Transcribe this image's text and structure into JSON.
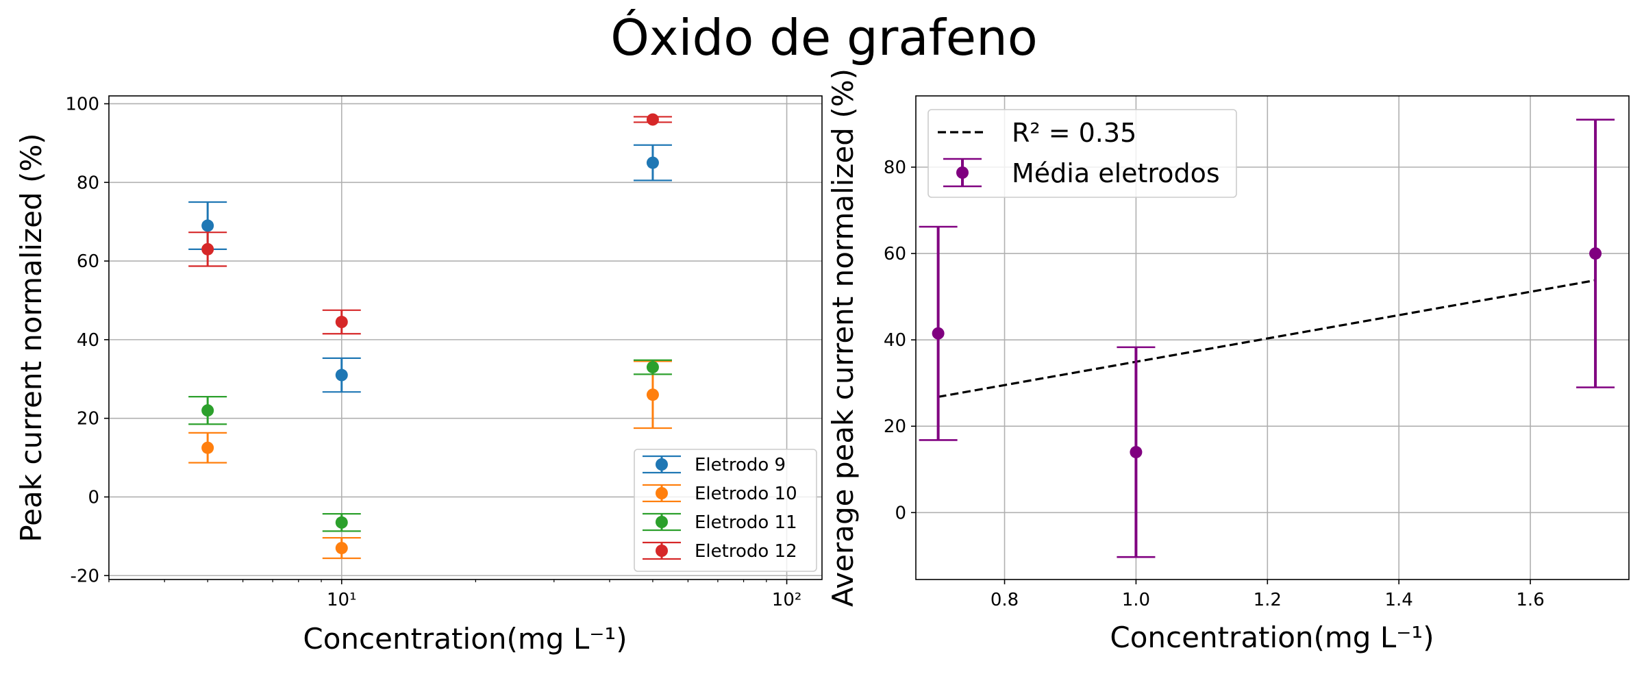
{
  "figure": {
    "suptitle": "Óxido de grafeno",
    "colors": {
      "eletrodo_9": "#1f77b4",
      "eletrodo_10": "#ff7f0e",
      "eletrodo_11": "#2ca02c",
      "eletrodo_12": "#d62728",
      "media": "#800080",
      "fit": "#000000",
      "grid": "#b0b0b0"
    }
  },
  "chart_data": [
    {
      "type": "scatter",
      "xlabel": "Concentration(mg L⁻¹)",
      "ylabel": "Peak current normalized (%)",
      "xscale": "log",
      "xlim": [
        3,
        120
      ],
      "ylim": [
        -21,
        102
      ],
      "xticks": [
        {
          "value": 10,
          "label": "10¹"
        },
        {
          "value": 100,
          "label": "10²"
        }
      ],
      "yticks": [
        -20,
        0,
        20,
        40,
        60,
        80,
        100
      ],
      "grid": true,
      "legend_position": "lower-right",
      "series": [
        {
          "name": "Eletrodo 9",
          "x": [
            5,
            10,
            50
          ],
          "y": [
            69,
            31,
            85
          ],
          "yerr": [
            6,
            4.3,
            4.5
          ]
        },
        {
          "name": "Eletrodo 10",
          "x": [
            5,
            10,
            50
          ],
          "y": [
            12.5,
            -13,
            26
          ],
          "yerr": [
            3.8,
            2.6,
            8.5
          ]
        },
        {
          "name": "Eletrodo 11",
          "x": [
            5,
            10,
            50
          ],
          "y": [
            22,
            -6.5,
            33
          ],
          "yerr": [
            3.5,
            2.2,
            1.8
          ]
        },
        {
          "name": "Eletrodo 12",
          "x": [
            5,
            10,
            50
          ],
          "y": [
            63,
            44.5,
            96
          ],
          "yerr": [
            4.3,
            3,
            0.7
          ]
        }
      ]
    },
    {
      "type": "scatter",
      "xlabel": "Concentration(mg L⁻¹)",
      "ylabel": "Average peak current normalized (%)",
      "xscale": "linear",
      "xlim": [
        0.665,
        1.75
      ],
      "ylim": [
        -15.5,
        96.5
      ],
      "xticks": [
        0.8,
        1.0,
        1.2,
        1.4,
        1.6
      ],
      "yticks": [
        0,
        20,
        40,
        60,
        80
      ],
      "grid": true,
      "legend_position": "upper-left",
      "series": [
        {
          "name": "Média eletrodos",
          "x": [
            0.699,
            1.0,
            1.699
          ],
          "y": [
            41.5,
            14,
            60
          ],
          "yerr": [
            24.7,
            24.3,
            31
          ]
        }
      ],
      "fit": {
        "name": "R² = 0.35",
        "x": [
          0.699,
          1.699
        ],
        "y": [
          26.8,
          53.8
        ],
        "style": "dashed"
      }
    }
  ]
}
